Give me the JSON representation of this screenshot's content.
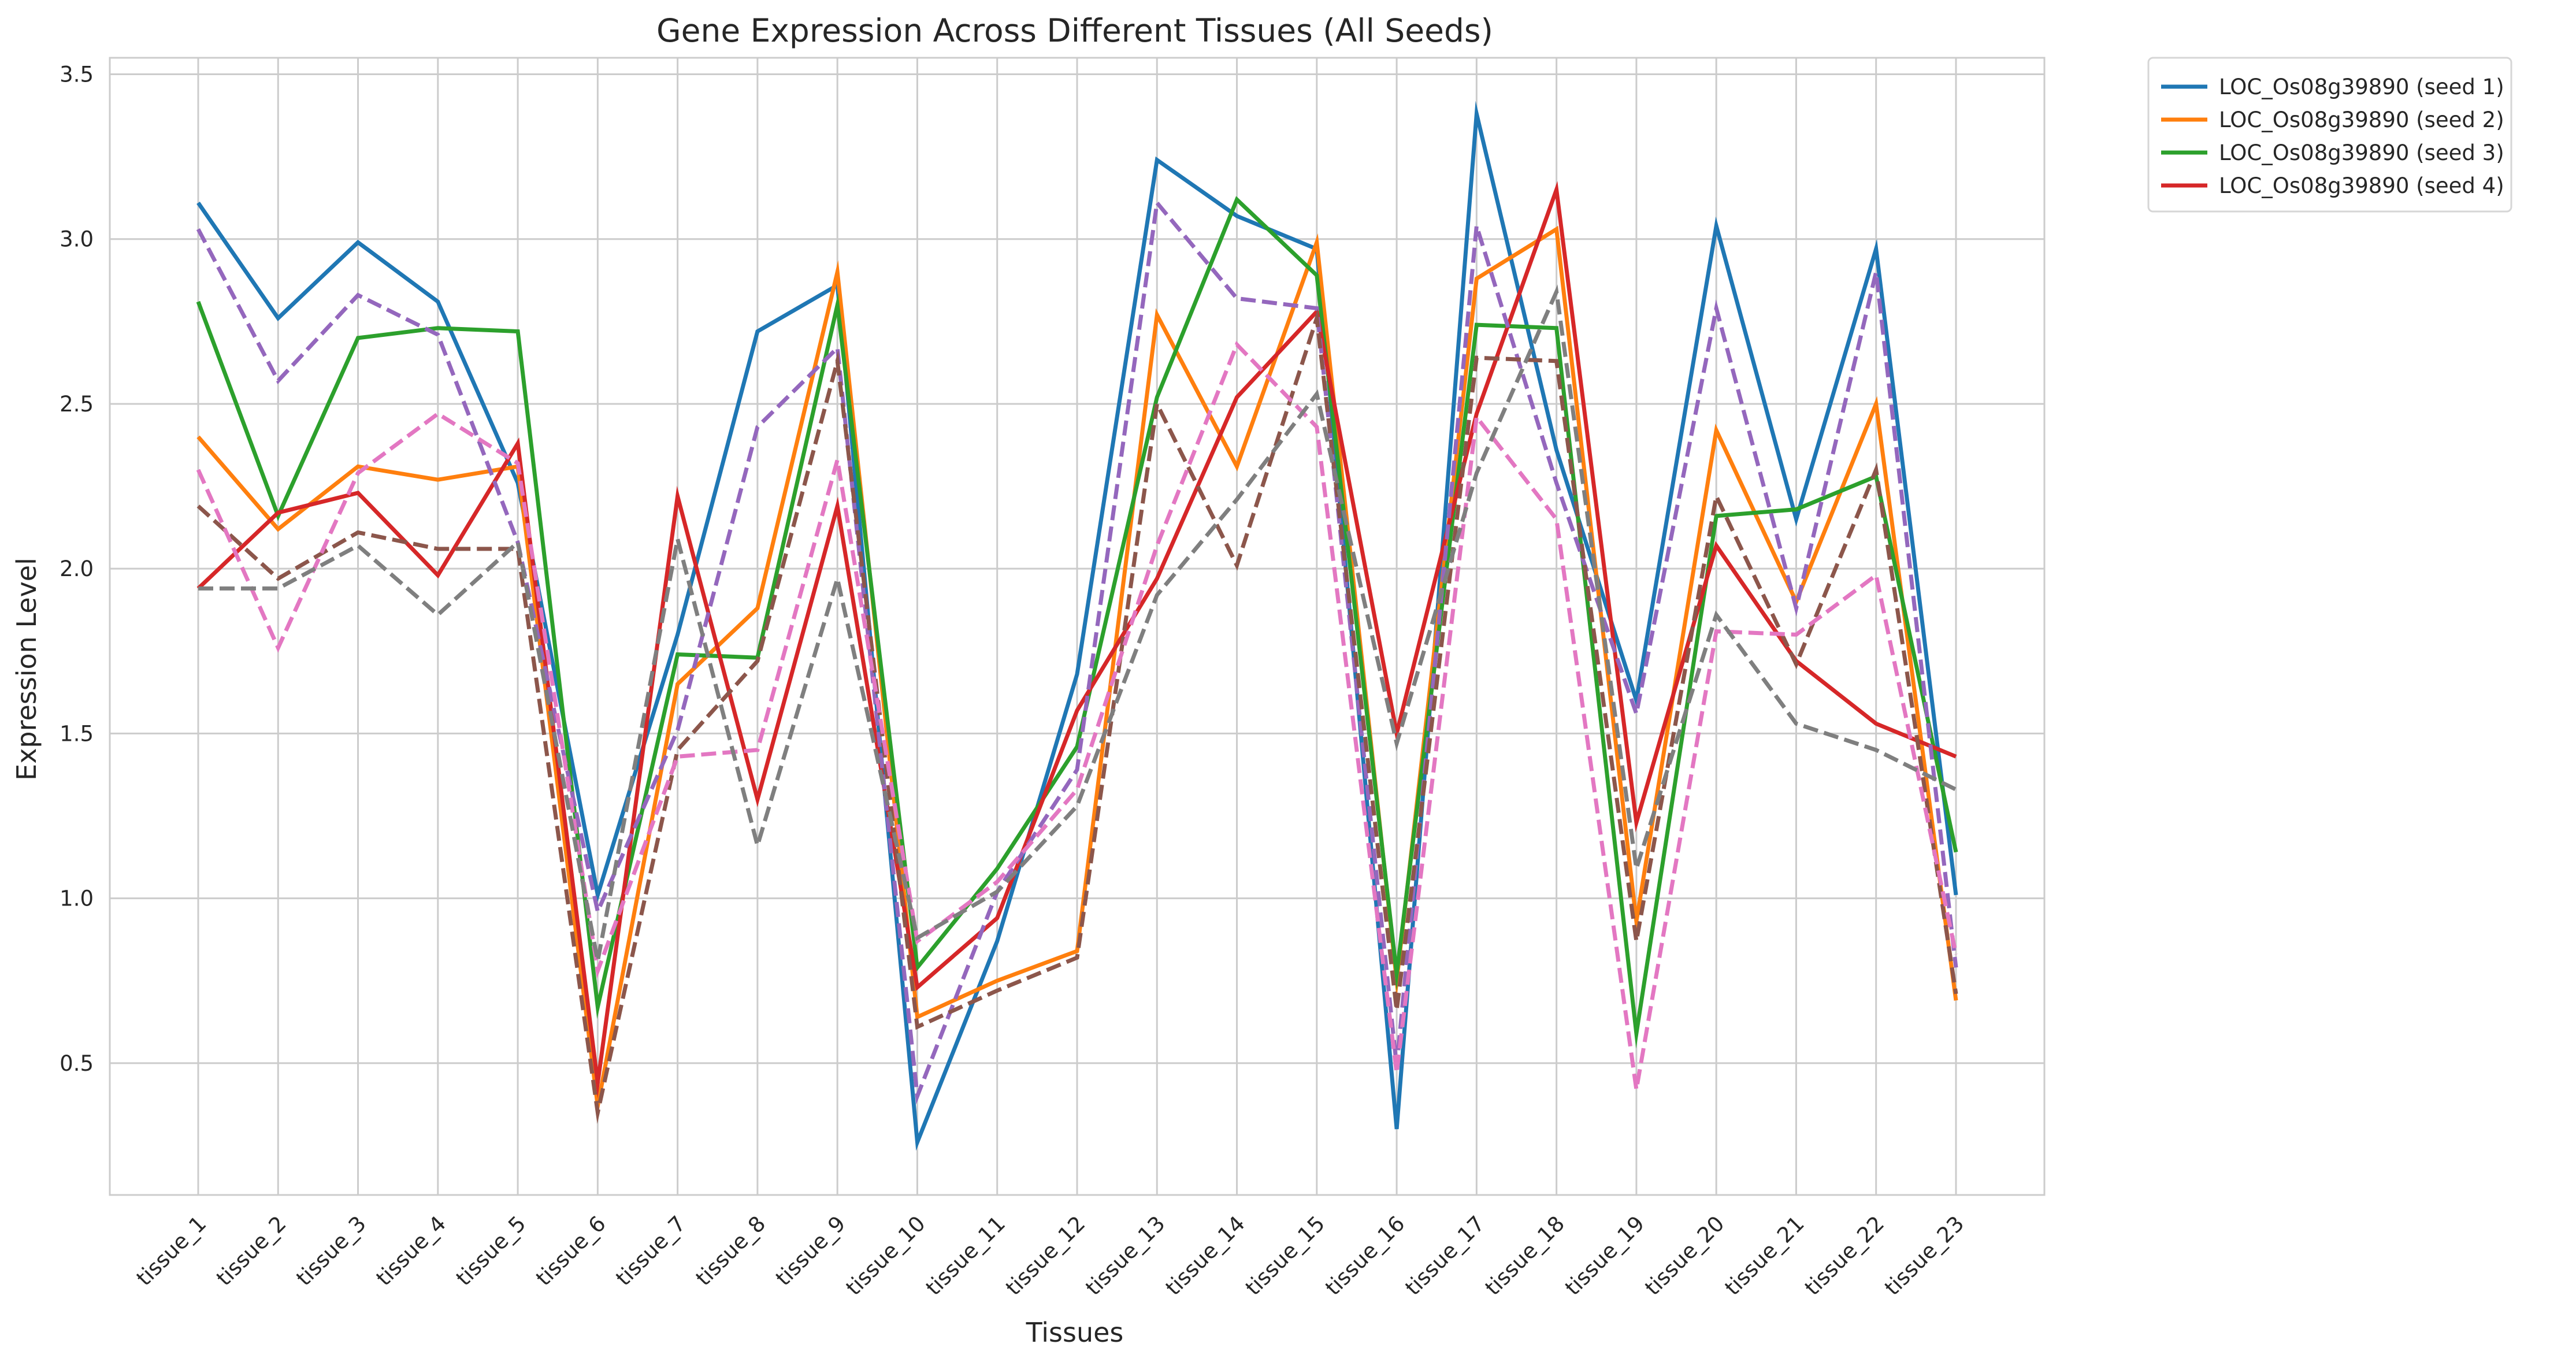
{
  "chart_data": {
    "type": "line",
    "title": "Gene Expression Across Different Tissues (All Seeds)",
    "xlabel": "Tissues",
    "ylabel": "Expression Level",
    "ylim": [
      0.1,
      3.55
    ],
    "yticks": [
      0.5,
      1.0,
      1.5,
      2.0,
      2.5,
      3.0,
      3.5
    ],
    "ytick_labels": [
      "0.5",
      "1.0",
      "1.5",
      "2.0",
      "2.5",
      "3.0",
      "3.5"
    ],
    "grid": true,
    "legend_placement": "outside top-right",
    "categories": [
      "tissue_1",
      "tissue_2",
      "tissue_3",
      "tissue_4",
      "tissue_5",
      "tissue_6",
      "tissue_7",
      "tissue_8",
      "tissue_9",
      "tissue_10",
      "tissue_11",
      "tissue_12",
      "tissue_13",
      "tissue_14",
      "tissue_15",
      "tissue_16",
      "tissue_17",
      "tissue_18",
      "tissue_19",
      "tissue_20",
      "tissue_21",
      "tissue_22",
      "tissue_23"
    ],
    "series": [
      {
        "name": "LOC_Os08g39890 (seed 1)",
        "color": "#1f77b4",
        "dashed": false,
        "in_legend": true,
        "values": [
          3.11,
          2.76,
          2.99,
          2.81,
          2.26,
          1.01,
          1.8,
          2.72,
          2.86,
          0.26,
          0.87,
          1.68,
          3.24,
          3.07,
          2.97,
          0.3,
          3.38,
          2.36,
          1.6,
          3.04,
          2.15,
          2.97,
          1.01
        ]
      },
      {
        "name": "LOC_Os08g39890 (seed 2)",
        "color": "#ff7f0e",
        "dashed": false,
        "in_legend": true,
        "values": [
          2.4,
          2.12,
          2.31,
          2.27,
          2.31,
          0.37,
          1.65,
          1.88,
          2.9,
          0.64,
          0.75,
          0.84,
          2.77,
          2.31,
          2.99,
          0.75,
          2.88,
          3.03,
          0.93,
          2.42,
          1.9,
          2.5,
          0.69
        ]
      },
      {
        "name": "LOC_Os08g39890 (seed 3)",
        "color": "#2ca02c",
        "dashed": false,
        "in_legend": true,
        "values": [
          2.81,
          2.16,
          2.7,
          2.73,
          2.72,
          0.67,
          1.74,
          1.73,
          2.8,
          0.79,
          1.09,
          1.46,
          2.52,
          3.12,
          2.89,
          0.77,
          2.74,
          2.73,
          0.59,
          2.16,
          2.18,
          2.28,
          1.14
        ]
      },
      {
        "name": "LOC_Os08g39890 (seed 4)",
        "color": "#d62728",
        "dashed": false,
        "in_legend": true,
        "values": [
          1.94,
          2.17,
          2.23,
          1.98,
          2.38,
          0.44,
          2.22,
          1.3,
          2.19,
          0.73,
          0.94,
          1.57,
          1.97,
          2.52,
          2.78,
          1.5,
          2.47,
          3.15,
          1.23,
          2.07,
          1.72,
          1.53,
          1.43
        ]
      },
      {
        "name": "",
        "color": "#9467bd",
        "dashed": true,
        "in_legend": false,
        "values": [
          3.03,
          2.57,
          2.83,
          2.71,
          2.08,
          0.96,
          1.51,
          2.43,
          2.67,
          0.4,
          1.02,
          1.39,
          3.11,
          2.82,
          2.79,
          0.49,
          3.04,
          2.26,
          1.56,
          2.79,
          1.88,
          2.9,
          0.79
        ]
      },
      {
        "name": "",
        "color": "#8c564b",
        "dashed": true,
        "in_legend": false,
        "values": [
          2.19,
          1.97,
          2.11,
          2.06,
          2.06,
          0.35,
          1.45,
          1.72,
          2.63,
          0.61,
          0.72,
          0.82,
          2.5,
          2.01,
          2.76,
          0.66,
          2.64,
          2.63,
          0.87,
          2.22,
          1.71,
          2.3,
          0.71
        ]
      },
      {
        "name": "",
        "color": "#e377c2",
        "dashed": true,
        "in_legend": false,
        "values": [
          2.3,
          1.76,
          2.29,
          2.47,
          2.32,
          0.78,
          1.43,
          1.45,
          2.33,
          0.87,
          1.05,
          1.33,
          2.07,
          2.68,
          2.43,
          0.47,
          2.46,
          2.15,
          0.42,
          1.81,
          1.8,
          1.98,
          0.83
        ]
      },
      {
        "name": "",
        "color": "#7f7f7f",
        "dashed": true,
        "in_legend": false,
        "values": [
          1.94,
          1.94,
          2.07,
          1.86,
          2.08,
          0.81,
          2.09,
          1.16,
          1.97,
          0.88,
          1.02,
          1.28,
          1.92,
          2.21,
          2.53,
          1.47,
          2.29,
          2.84,
          1.09,
          1.86,
          1.53,
          1.45,
          1.33
        ]
      }
    ]
  }
}
